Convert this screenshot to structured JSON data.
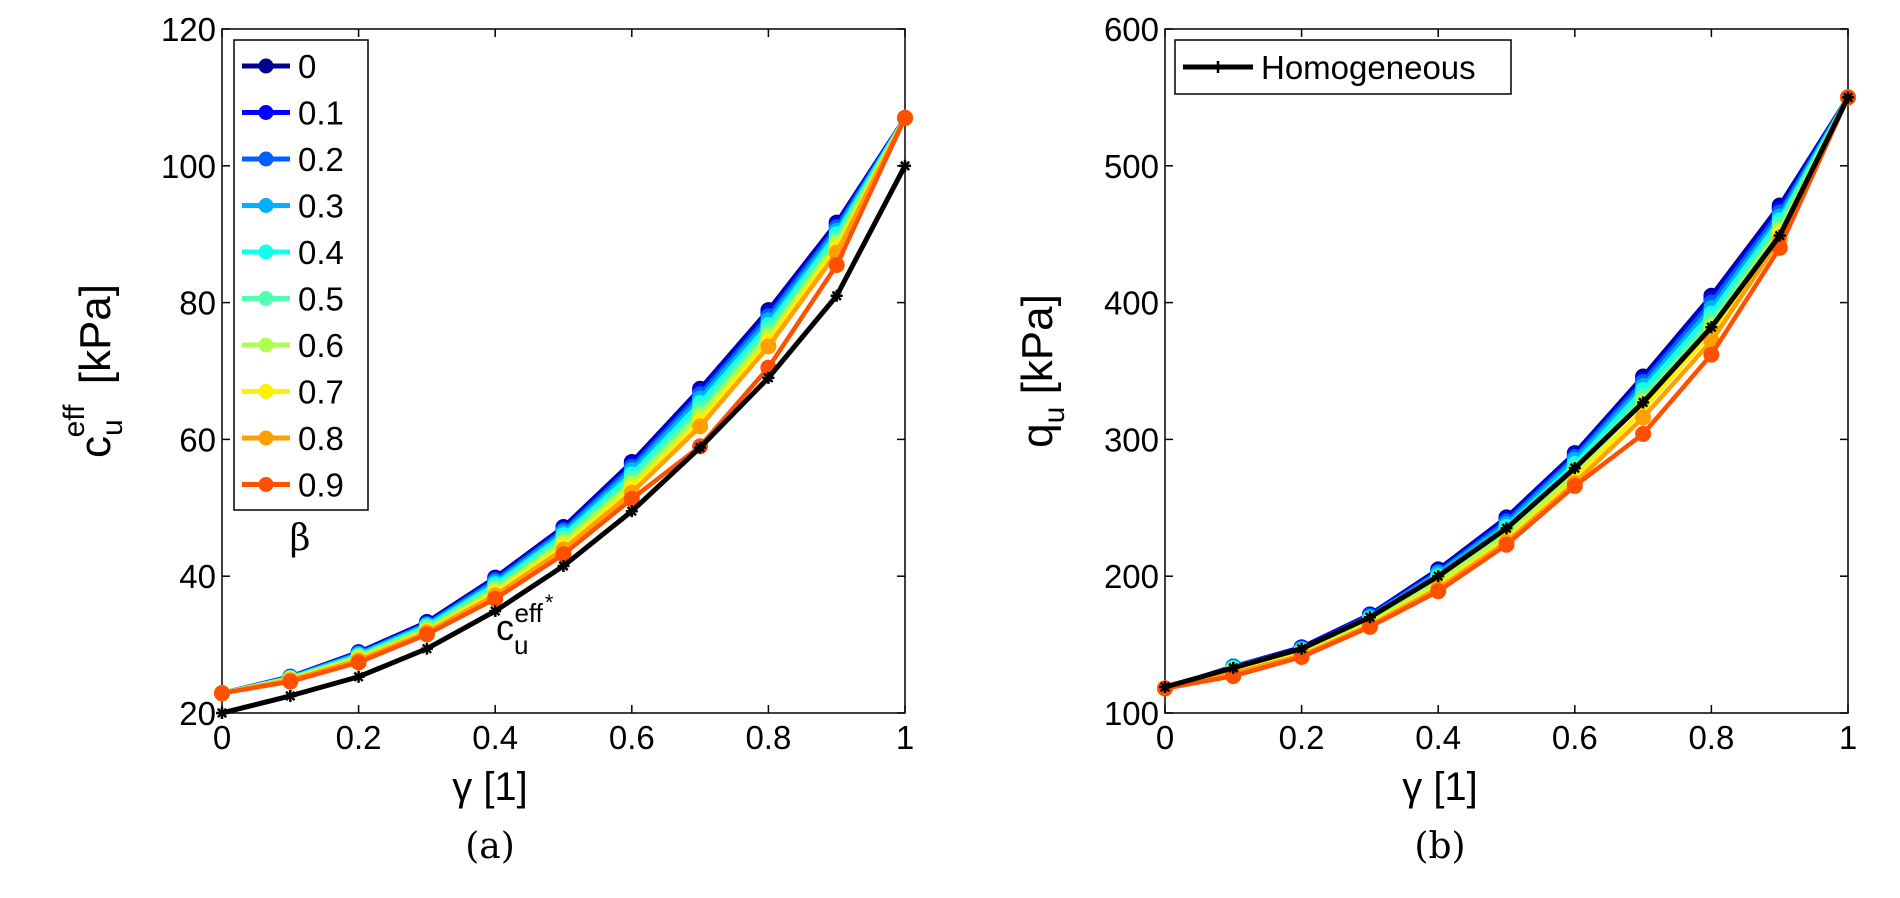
{
  "chart_data": [
    {
      "type": "line",
      "panel_label": "(a)",
      "xlabel": "γ [1]",
      "ylabel_main": "c",
      "ylabel_sub": "u",
      "ylabel_sup": "eff",
      "ylabel_unit": "[kPa]",
      "xlim": [
        0,
        1
      ],
      "ylim": [
        20,
        120
      ],
      "xticks": [
        0,
        0.2,
        0.4,
        0.6,
        0.8,
        1
      ],
      "xtick_labels": [
        "0",
        "0.2",
        "0.4",
        "0.6",
        "0.8",
        "1"
      ],
      "yticks": [
        20,
        40,
        60,
        80,
        100,
        120
      ],
      "ytick_labels": [
        "20",
        "40",
        "60",
        "80",
        "100",
        "120"
      ],
      "grid": false,
      "legend_position": "top-left",
      "legend_title": "β",
      "x": [
        0,
        0.1,
        0.2,
        0.3,
        0.4,
        0.5,
        0.6,
        0.7,
        0.8,
        0.9,
        1
      ],
      "series": [
        {
          "name": "0",
          "color": "#00008f",
          "values": [
            22.9,
            25.3,
            28.9,
            33.3,
            39.8,
            47.2,
            56.7,
            67.4,
            78.9,
            91.7,
            107
          ]
        },
        {
          "name": "0.1",
          "color": "#0000ff",
          "values": [
            22.9,
            25.3,
            28.8,
            33.2,
            39.6,
            47.0,
            56.4,
            67.1,
            78.5,
            91.4,
            107
          ]
        },
        {
          "name": "0.2",
          "color": "#0060ff",
          "values": [
            22.9,
            25.2,
            28.7,
            33.0,
            39.4,
            46.7,
            56.0,
            66.6,
            78.0,
            91.0,
            107
          ]
        },
        {
          "name": "0.3",
          "color": "#00b0ff",
          "values": [
            22.9,
            25.2,
            28.6,
            32.9,
            39.1,
            46.4,
            55.5,
            66.0,
            77.4,
            90.5,
            107
          ]
        },
        {
          "name": "0.4",
          "color": "#10ffef",
          "values": [
            22.9,
            25.1,
            28.4,
            32.7,
            38.8,
            46.0,
            54.9,
            65.3,
            76.7,
            90.0,
            107
          ]
        },
        {
          "name": "0.5",
          "color": "#50ffaf",
          "values": [
            22.9,
            25.1,
            28.3,
            32.5,
            38.4,
            45.5,
            54.3,
            64.5,
            76.0,
            89.4,
            107
          ]
        },
        {
          "name": "0.6",
          "color": "#afff50",
          "values": [
            22.9,
            25.0,
            28.1,
            32.2,
            38.0,
            45.0,
            53.6,
            63.6,
            75.2,
            88.7,
            107
          ]
        },
        {
          "name": "0.7",
          "color": "#ffef00",
          "values": [
            22.9,
            24.9,
            27.9,
            32.0,
            37.6,
            44.4,
            52.9,
            62.7,
            74.4,
            88.0,
            107
          ]
        },
        {
          "name": "0.8",
          "color": "#ffa000",
          "values": [
            22.9,
            24.8,
            27.7,
            31.8,
            37.2,
            43.9,
            52.2,
            61.9,
            73.6,
            87.3,
            107
          ]
        },
        {
          "name": "0.9",
          "color": "#ff5000",
          "values": [
            22.9,
            24.6,
            27.4,
            31.5,
            36.7,
            43.2,
            51.3,
            59.0,
            70.5,
            85.5,
            107
          ]
        },
        {
          "name": "",
          "color": "#000000",
          "marker": "star",
          "values": [
            20.0,
            22.5,
            25.3,
            29.4,
            34.9,
            41.5,
            49.5,
            58.8,
            69.0,
            81.0,
            100
          ]
        }
      ],
      "annotation_main": "c",
      "annotation_sub": "u",
      "annotation_sup": "eff",
      "annotation_star": "*"
    },
    {
      "type": "line",
      "panel_label": "(b)",
      "xlabel": "γ [1]",
      "ylabel_main": "q",
      "ylabel_sub": "u",
      "ylabel_unit": "[kPa]",
      "xlim": [
        0,
        1
      ],
      "ylim": [
        100,
        600
      ],
      "xticks": [
        0,
        0.2,
        0.4,
        0.6,
        0.8,
        1
      ],
      "xtick_labels": [
        "0",
        "0.2",
        "0.4",
        "0.6",
        "0.8",
        "1"
      ],
      "yticks": [
        100,
        200,
        300,
        400,
        500,
        600
      ],
      "ytick_labels": [
        "100",
        "200",
        "300",
        "400",
        "500",
        "600"
      ],
      "grid": false,
      "legend_position": "top-left",
      "x": [
        0,
        0.1,
        0.2,
        0.3,
        0.4,
        0.5,
        0.6,
        0.7,
        0.8,
        0.9,
        1
      ],
      "series": [
        {
          "name": "",
          "color": "#00008f",
          "values": [
            118,
            134,
            148,
            172,
            205,
            243,
            290,
            346,
            405,
            471,
            550
          ]
        },
        {
          "name": "",
          "color": "#0000ff",
          "values": [
            118,
            134,
            148,
            172,
            204,
            242,
            289,
            344,
            403,
            469,
            550
          ]
        },
        {
          "name": "",
          "color": "#0060ff",
          "values": [
            118,
            134,
            147,
            171,
            203,
            240,
            287,
            342,
            400,
            466,
            550
          ]
        },
        {
          "name": "",
          "color": "#00b0ff",
          "values": [
            118,
            133,
            147,
            170,
            202,
            238,
            285,
            339,
            396,
            463,
            550
          ]
        },
        {
          "name": "",
          "color": "#10ffef",
          "values": [
            118,
            133,
            146,
            169,
            200,
            236,
            282,
            336,
            392,
            460,
            550
          ]
        },
        {
          "name": "",
          "color": "#50ffaf",
          "values": [
            118,
            132,
            145,
            168,
            198,
            233,
            279,
            332,
            388,
            457,
            550
          ]
        },
        {
          "name": "",
          "color": "#afff50",
          "values": [
            118,
            131,
            144,
            167,
            196,
            230,
            275,
            328,
            383,
            453,
            550
          ]
        },
        {
          "name": "",
          "color": "#ffef00",
          "values": [
            118,
            130,
            143,
            165,
            193,
            227,
            271,
            322,
            378,
            450,
            550
          ]
        },
        {
          "name": "",
          "color": "#ffa000",
          "values": [
            118,
            129,
            142,
            164,
            191,
            225,
            268,
            316,
            372,
            446,
            550
          ]
        },
        {
          "name": "",
          "color": "#ff5000",
          "values": [
            118,
            127,
            141,
            163,
            189,
            223,
            266,
            304,
            362,
            440,
            550
          ]
        },
        {
          "name": "Homogeneous",
          "color": "#000000",
          "marker": "star",
          "values": [
            119,
            133,
            147,
            170,
            200,
            235,
            279,
            327,
            382,
            449,
            550
          ]
        }
      ]
    }
  ]
}
